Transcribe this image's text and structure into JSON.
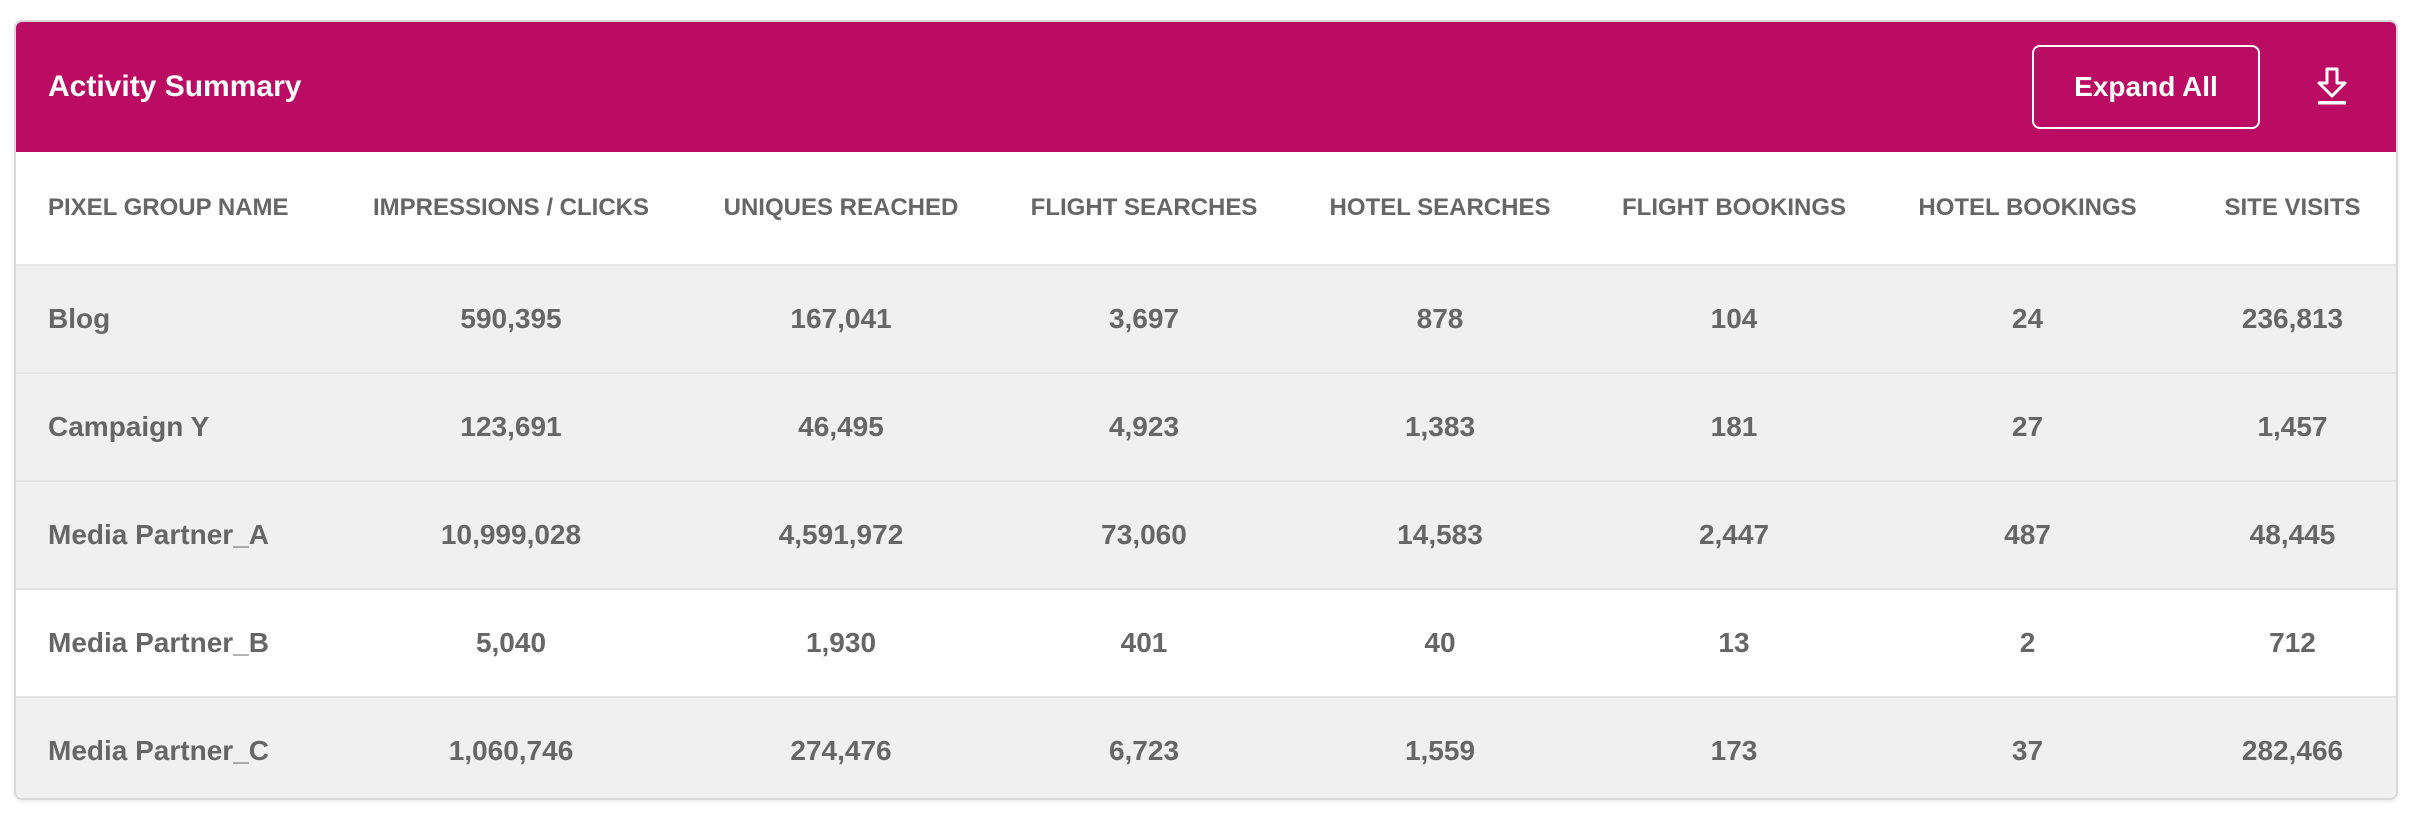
{
  "header": {
    "title": "Activity Summary",
    "expand_label": "Expand All",
    "download_icon": "download-icon",
    "background_color": "#BA0C63"
  },
  "table": {
    "columns": [
      "PIXEL GROUP NAME",
      "IMPRESSIONS / CLICKS",
      "UNIQUES REACHED",
      "FLIGHT SEARCHES",
      "HOTEL SEARCHES",
      "FLIGHT BOOKINGS",
      "HOTEL BOOKINGS",
      "SITE VISITS"
    ],
    "rows": [
      [
        "Blog",
        "590,395",
        "167,041",
        "3,697",
        "878",
        "104",
        "24",
        "236,813"
      ],
      [
        "Campaign Y",
        "123,691",
        "46,495",
        "4,923",
        "1,383",
        "181",
        "27",
        "1,457"
      ],
      [
        "Media Partner_A",
        "10,999,028",
        "4,591,972",
        "73,060",
        "14,583",
        "2,447",
        "487",
        "48,445"
      ],
      [
        "Media Partner_B",
        "5,040",
        "1,930",
        "401",
        "40",
        "13",
        "2",
        "712"
      ],
      [
        "Media Partner_C",
        "1,060,746",
        "274,476",
        "6,723",
        "1,559",
        "173",
        "37",
        "282,466"
      ]
    ]
  }
}
